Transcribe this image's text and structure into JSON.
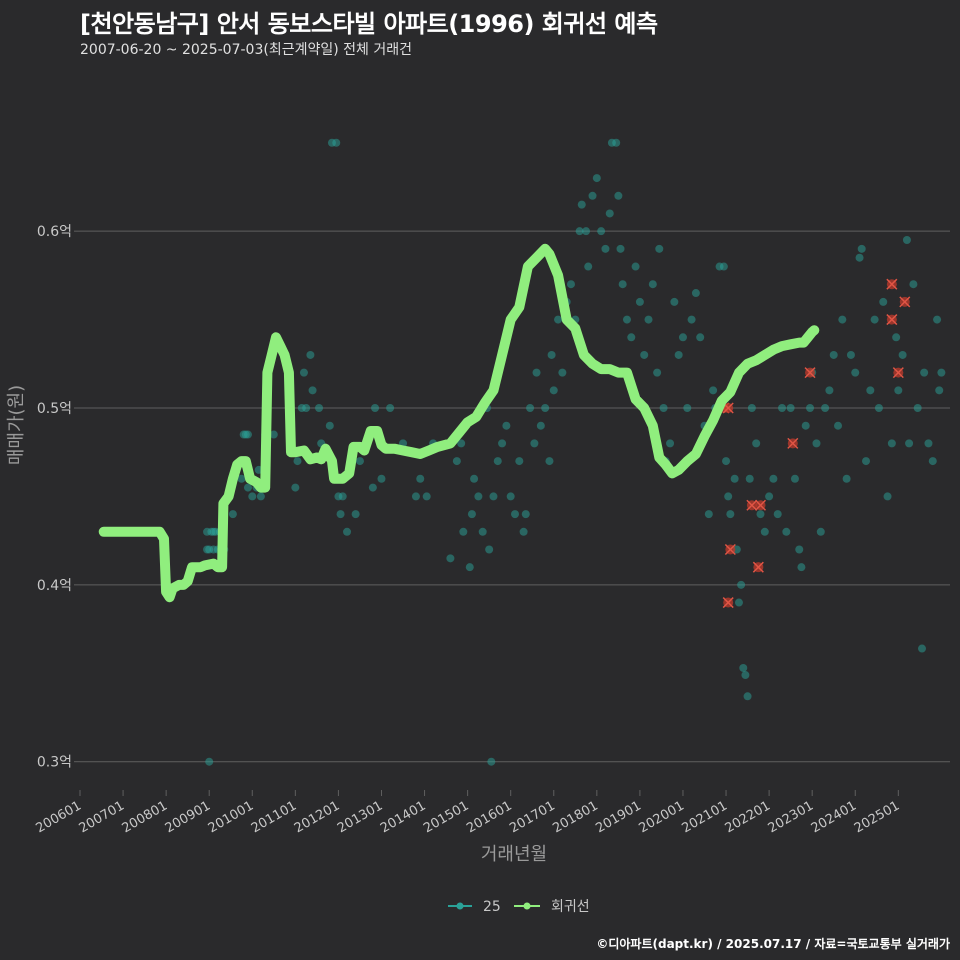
{
  "header": {
    "title": "[천안동남구] 안서 동보스타빌 아파트(1996) 회귀선 예측",
    "subtitle": "2007-06-20 ~ 2025-07-03(최근계약일) 전체 거래건"
  },
  "footer": {
    "credit": "©디아파트(dapt.kr) / 2025.07.17 / 자료=국토교통부 실거래가"
  },
  "colors": {
    "background": "#2a2a2c",
    "grid": "#5f5f5f",
    "scatter": "#2aa198",
    "regression": "#90ee7e",
    "highlight": "#c0392b"
  },
  "chart_data": {
    "type": "scatter",
    "xlabel": "거래년월",
    "ylabel": "매매가(원)",
    "xlim": [
      2006.0,
      2026.2
    ],
    "ylim": [
      0.284,
      0.69
    ],
    "grid": true,
    "legend_position": "bottom",
    "x_ticks": [
      "200601",
      "200701",
      "200801",
      "200901",
      "201001",
      "201101",
      "201201",
      "201301",
      "201401",
      "201501",
      "201601",
      "201701",
      "201801",
      "201901",
      "202001",
      "202101",
      "202201",
      "202301",
      "202401",
      "202501"
    ],
    "y_ticks": [
      {
        "value": 0.3,
        "label": "0.3억"
      },
      {
        "value": 0.4,
        "label": "0.4억"
      },
      {
        "value": 0.5,
        "label": "0.5억"
      },
      {
        "value": 0.6,
        "label": "0.6억"
      }
    ],
    "legend": [
      {
        "name": "25",
        "key": "scatter"
      },
      {
        "name": "회귀선",
        "key": "regression"
      }
    ],
    "scatter_points": [
      [
        2008.95,
        0.43
      ],
      [
        2009.0,
        0.42
      ],
      [
        2009.05,
        0.43
      ],
      [
        2009.1,
        0.42
      ],
      [
        2009.15,
        0.43
      ],
      [
        2009.2,
        0.42
      ],
      [
        2009.25,
        0.43
      ],
      [
        2008.95,
        0.42
      ],
      [
        2009.1,
        0.43
      ],
      [
        2009.35,
        0.42
      ],
      [
        2009.55,
        0.44
      ],
      [
        2009.75,
        0.46
      ],
      [
        2009.8,
        0.485
      ],
      [
        2009.85,
        0.485
      ],
      [
        2009.9,
        0.485
      ],
      [
        2009.9,
        0.455
      ],
      [
        2010.0,
        0.45
      ],
      [
        2010.1,
        0.455
      ],
      [
        2010.15,
        0.465
      ],
      [
        2010.2,
        0.45
      ],
      [
        2010.3,
        0.485
      ],
      [
        2010.5,
        0.485
      ],
      [
        2011.0,
        0.455
      ],
      [
        2011.05,
        0.47
      ],
      [
        2011.15,
        0.5
      ],
      [
        2011.2,
        0.52
      ],
      [
        2011.25,
        0.5
      ],
      [
        2011.35,
        0.53
      ],
      [
        2011.4,
        0.51
      ],
      [
        2011.55,
        0.5
      ],
      [
        2011.6,
        0.48
      ],
      [
        2011.8,
        0.49
      ],
      [
        2011.85,
        0.65
      ],
      [
        2011.95,
        0.65
      ],
      [
        2012.0,
        0.45
      ],
      [
        2012.05,
        0.44
      ],
      [
        2012.1,
        0.45
      ],
      [
        2012.2,
        0.43
      ],
      [
        2012.3,
        0.47
      ],
      [
        2012.4,
        0.44
      ],
      [
        2012.5,
        0.47
      ],
      [
        2012.8,
        0.455
      ],
      [
        2012.85,
        0.5
      ],
      [
        2013.0,
        0.46
      ],
      [
        2013.2,
        0.5
      ],
      [
        2013.5,
        0.48
      ],
      [
        2013.8,
        0.45
      ],
      [
        2013.9,
        0.46
      ],
      [
        2014.05,
        0.45
      ],
      [
        2014.2,
        0.48
      ],
      [
        2014.6,
        0.415
      ],
      [
        2014.75,
        0.47
      ],
      [
        2014.85,
        0.48
      ],
      [
        2014.9,
        0.43
      ],
      [
        2015.05,
        0.41
      ],
      [
        2015.1,
        0.44
      ],
      [
        2015.15,
        0.46
      ],
      [
        2015.25,
        0.45
      ],
      [
        2015.35,
        0.43
      ],
      [
        2015.45,
        0.5
      ],
      [
        2015.5,
        0.42
      ],
      [
        2015.6,
        0.45
      ],
      [
        2015.7,
        0.47
      ],
      [
        2015.8,
        0.48
      ],
      [
        2015.9,
        0.49
      ],
      [
        2016.0,
        0.45
      ],
      [
        2016.1,
        0.44
      ],
      [
        2016.2,
        0.47
      ],
      [
        2016.3,
        0.43
      ],
      [
        2016.35,
        0.44
      ],
      [
        2016.45,
        0.5
      ],
      [
        2016.55,
        0.48
      ],
      [
        2016.6,
        0.52
      ],
      [
        2016.7,
        0.49
      ],
      [
        2016.8,
        0.5
      ],
      [
        2016.9,
        0.47
      ],
      [
        2016.95,
        0.53
      ],
      [
        2017.0,
        0.51
      ],
      [
        2017.1,
        0.55
      ],
      [
        2017.2,
        0.52
      ],
      [
        2017.3,
        0.56
      ],
      [
        2017.4,
        0.57
      ],
      [
        2017.5,
        0.55
      ],
      [
        2017.6,
        0.6
      ],
      [
        2017.65,
        0.615
      ],
      [
        2017.75,
        0.6
      ],
      [
        2017.8,
        0.58
      ],
      [
        2017.9,
        0.62
      ],
      [
        2018.0,
        0.63
      ],
      [
        2018.1,
        0.6
      ],
      [
        2018.2,
        0.59
      ],
      [
        2018.3,
        0.61
      ],
      [
        2018.35,
        0.65
      ],
      [
        2018.45,
        0.65
      ],
      [
        2018.5,
        0.62
      ],
      [
        2018.55,
        0.59
      ],
      [
        2018.6,
        0.57
      ],
      [
        2018.7,
        0.55
      ],
      [
        2018.8,
        0.54
      ],
      [
        2018.9,
        0.58
      ],
      [
        2019.0,
        0.56
      ],
      [
        2019.1,
        0.53
      ],
      [
        2019.2,
        0.55
      ],
      [
        2019.3,
        0.57
      ],
      [
        2019.4,
        0.52
      ],
      [
        2019.45,
        0.59
      ],
      [
        2019.55,
        0.5
      ],
      [
        2019.6,
        0.47
      ],
      [
        2019.7,
        0.48
      ],
      [
        2019.8,
        0.56
      ],
      [
        2019.9,
        0.53
      ],
      [
        2020.0,
        0.54
      ],
      [
        2020.1,
        0.5
      ],
      [
        2020.2,
        0.55
      ],
      [
        2020.3,
        0.565
      ],
      [
        2020.4,
        0.54
      ],
      [
        2020.5,
        0.49
      ],
      [
        2020.6,
        0.44
      ],
      [
        2020.7,
        0.51
      ],
      [
        2020.75,
        0.5
      ],
      [
        2020.85,
        0.58
      ],
      [
        2020.95,
        0.58
      ],
      [
        2021.0,
        0.47
      ],
      [
        2021.05,
        0.45
      ],
      [
        2021.1,
        0.44
      ],
      [
        2021.2,
        0.46
      ],
      [
        2021.25,
        0.42
      ],
      [
        2021.3,
        0.39
      ],
      [
        2021.35,
        0.4
      ],
      [
        2021.4,
        0.353
      ],
      [
        2021.45,
        0.349
      ],
      [
        2021.5,
        0.337
      ],
      [
        2021.55,
        0.46
      ],
      [
        2021.6,
        0.5
      ],
      [
        2021.7,
        0.48
      ],
      [
        2021.8,
        0.44
      ],
      [
        2021.9,
        0.43
      ],
      [
        2022.0,
        0.45
      ],
      [
        2022.1,
        0.46
      ],
      [
        2022.2,
        0.44
      ],
      [
        2022.3,
        0.5
      ],
      [
        2022.4,
        0.43
      ],
      [
        2022.5,
        0.5
      ],
      [
        2022.6,
        0.46
      ],
      [
        2022.7,
        0.42
      ],
      [
        2022.75,
        0.41
      ],
      [
        2022.85,
        0.49
      ],
      [
        2022.95,
        0.5
      ],
      [
        2023.0,
        0.52
      ],
      [
        2023.1,
        0.48
      ],
      [
        2023.2,
        0.43
      ],
      [
        2023.3,
        0.5
      ],
      [
        2023.4,
        0.51
      ],
      [
        2023.5,
        0.53
      ],
      [
        2023.6,
        0.49
      ],
      [
        2023.7,
        0.55
      ],
      [
        2023.8,
        0.46
      ],
      [
        2023.9,
        0.53
      ],
      [
        2024.0,
        0.52
      ],
      [
        2024.1,
        0.585
      ],
      [
        2024.15,
        0.59
      ],
      [
        2024.25,
        0.47
      ],
      [
        2024.35,
        0.51
      ],
      [
        2024.45,
        0.55
      ],
      [
        2024.55,
        0.5
      ],
      [
        2024.65,
        0.56
      ],
      [
        2024.75,
        0.45
      ],
      [
        2024.85,
        0.48
      ],
      [
        2024.95,
        0.54
      ],
      [
        2025.0,
        0.51
      ],
      [
        2025.1,
        0.53
      ],
      [
        2025.2,
        0.595
      ],
      [
        2025.25,
        0.48
      ],
      [
        2025.35,
        0.57
      ],
      [
        2025.45,
        0.5
      ],
      [
        2025.55,
        0.364
      ],
      [
        2025.6,
        0.52
      ],
      [
        2025.7,
        0.48
      ],
      [
        2025.8,
        0.47
      ],
      [
        2025.9,
        0.55
      ],
      [
        2025.95,
        0.51
      ],
      [
        2026.0,
        0.52
      ],
      [
        2009.0,
        0.3
      ],
      [
        2015.55,
        0.3
      ]
    ],
    "highlight_points": [
      [
        2020.95,
        0.5
      ],
      [
        2021.05,
        0.5
      ],
      [
        2021.1,
        0.42
      ],
      [
        2021.05,
        0.39
      ],
      [
        2021.6,
        0.445
      ],
      [
        2021.8,
        0.445
      ],
      [
        2021.75,
        0.41
      ],
      [
        2022.55,
        0.48
      ],
      [
        2022.95,
        0.52
      ],
      [
        2024.85,
        0.57
      ],
      [
        2024.85,
        0.55
      ],
      [
        2025.0,
        0.52
      ],
      [
        2025.15,
        0.56
      ]
    ],
    "regression": [
      [
        2006.55,
        0.43
      ],
      [
        2006.8,
        0.43
      ],
      [
        2007.2,
        0.43
      ],
      [
        2007.6,
        0.43
      ],
      [
        2007.85,
        0.43
      ],
      [
        2007.95,
        0.426
      ],
      [
        2008.0,
        0.396
      ],
      [
        2008.08,
        0.393
      ],
      [
        2008.15,
        0.398
      ],
      [
        2008.3,
        0.4
      ],
      [
        2008.4,
        0.4
      ],
      [
        2008.5,
        0.402
      ],
      [
        2008.6,
        0.41
      ],
      [
        2008.8,
        0.41
      ],
      [
        2008.9,
        0.411
      ],
      [
        2009.1,
        0.412
      ],
      [
        2009.2,
        0.41
      ],
      [
        2009.3,
        0.41
      ],
      [
        2009.33,
        0.446
      ],
      [
        2009.45,
        0.45
      ],
      [
        2009.55,
        0.46
      ],
      [
        2009.65,
        0.468
      ],
      [
        2009.75,
        0.47
      ],
      [
        2009.85,
        0.47
      ],
      [
        2009.95,
        0.46
      ],
      [
        2010.1,
        0.458
      ],
      [
        2010.2,
        0.455
      ],
      [
        2010.3,
        0.455
      ],
      [
        2010.35,
        0.52
      ],
      [
        2010.45,
        0.53
      ],
      [
        2010.55,
        0.54
      ],
      [
        2010.65,
        0.535
      ],
      [
        2010.75,
        0.53
      ],
      [
        2010.85,
        0.52
      ],
      [
        2010.9,
        0.475
      ],
      [
        2011.0,
        0.475
      ],
      [
        2011.2,
        0.476
      ],
      [
        2011.35,
        0.471
      ],
      [
        2011.5,
        0.472
      ],
      [
        2011.6,
        0.471
      ],
      [
        2011.7,
        0.477
      ],
      [
        2011.85,
        0.47
      ],
      [
        2011.9,
        0.46
      ],
      [
        2012.1,
        0.46
      ],
      [
        2012.25,
        0.463
      ],
      [
        2012.35,
        0.478
      ],
      [
        2012.5,
        0.478
      ],
      [
        2012.6,
        0.476
      ],
      [
        2012.75,
        0.487
      ],
      [
        2012.9,
        0.487
      ],
      [
        2013.0,
        0.479
      ],
      [
        2013.1,
        0.477
      ],
      [
        2013.3,
        0.477
      ],
      [
        2013.5,
        0.476
      ],
      [
        2013.7,
        0.475
      ],
      [
        2013.9,
        0.474
      ],
      [
        2014.1,
        0.476
      ],
      [
        2014.3,
        0.478
      ],
      [
        2014.6,
        0.48
      ],
      [
        2014.8,
        0.486
      ],
      [
        2015.0,
        0.492
      ],
      [
        2015.2,
        0.495
      ],
      [
        2015.4,
        0.503
      ],
      [
        2015.6,
        0.51
      ],
      [
        2015.8,
        0.53
      ],
      [
        2016.0,
        0.55
      ],
      [
        2016.2,
        0.557
      ],
      [
        2016.4,
        0.58
      ],
      [
        2016.6,
        0.585
      ],
      [
        2016.8,
        0.59
      ],
      [
        2016.9,
        0.587
      ],
      [
        2017.1,
        0.575
      ],
      [
        2017.3,
        0.55
      ],
      [
        2017.5,
        0.545
      ],
      [
        2017.7,
        0.53
      ],
      [
        2017.9,
        0.525
      ],
      [
        2018.1,
        0.522
      ],
      [
        2018.3,
        0.522
      ],
      [
        2018.5,
        0.52
      ],
      [
        2018.7,
        0.52
      ],
      [
        2018.9,
        0.505
      ],
      [
        2019.1,
        0.5
      ],
      [
        2019.3,
        0.49
      ],
      [
        2019.45,
        0.472
      ],
      [
        2019.6,
        0.468
      ],
      [
        2019.75,
        0.463
      ],
      [
        2019.9,
        0.465
      ],
      [
        2020.1,
        0.47
      ],
      [
        2020.3,
        0.474
      ],
      [
        2020.5,
        0.484
      ],
      [
        2020.7,
        0.493
      ],
      [
        2020.9,
        0.504
      ],
      [
        2021.1,
        0.509
      ],
      [
        2021.3,
        0.52
      ],
      [
        2021.5,
        0.525
      ],
      [
        2021.7,
        0.527
      ],
      [
        2021.9,
        0.53
      ],
      [
        2022.1,
        0.533
      ],
      [
        2022.3,
        0.535
      ],
      [
        2022.5,
        0.536
      ],
      [
        2022.7,
        0.537
      ],
      [
        2022.8,
        0.537
      ],
      [
        2022.9,
        0.54
      ],
      [
        2023.0,
        0.543
      ],
      [
        2023.05,
        0.544
      ]
    ]
  }
}
